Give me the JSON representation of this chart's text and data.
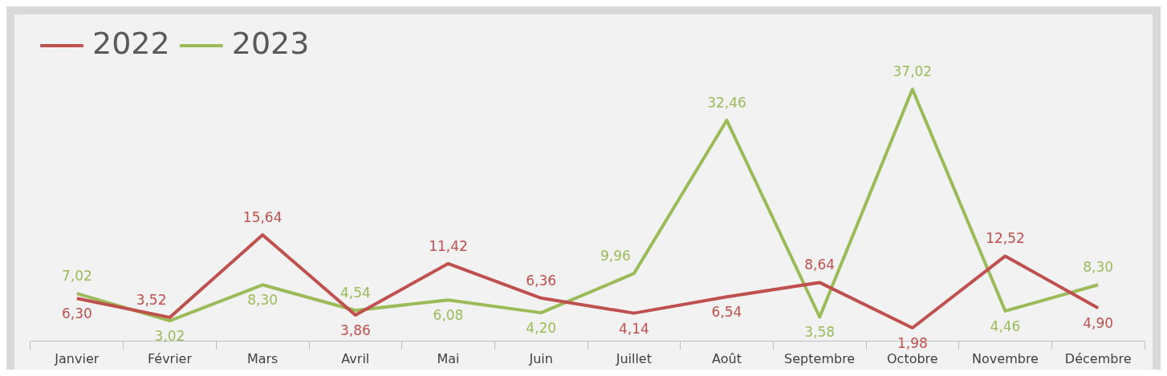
{
  "chart_data": {
    "type": "line",
    "categories": [
      "Janvier",
      "Février",
      "Mars",
      "Avril",
      "Mai",
      "Juin",
      "Juillet",
      "Août",
      "Septembre",
      "Octobre",
      "Novembre",
      "Décembre"
    ],
    "series": [
      {
        "name": "2022",
        "color": "#c0504d",
        "values": [
          6.3,
          3.52,
          15.64,
          3.86,
          11.42,
          6.36,
          4.14,
          6.54,
          8.64,
          1.98,
          12.52,
          4.9
        ],
        "value_labels": [
          "6,30",
          "3,52",
          "15,64",
          "3,86",
          "11,42",
          "6,36",
          "4,14",
          "6,54",
          "8,64",
          "1,98",
          "12,52",
          "4,90"
        ]
      },
      {
        "name": "2023",
        "color": "#9bbb59",
        "values": [
          7.02,
          3.02,
          8.3,
          4.54,
          6.08,
          4.2,
          9.96,
          32.46,
          3.58,
          37.02,
          4.46,
          8.3
        ],
        "value_labels": [
          "7,02",
          "3,02",
          "8,30",
          "4,54",
          "6,08",
          "4,20",
          "9,96",
          "32,46",
          "3,58",
          "37,02",
          "4,46",
          "8,30"
        ]
      }
    ],
    "legend": "top left",
    "marker": "none",
    "line_style": "solid",
    "grid": false
  }
}
